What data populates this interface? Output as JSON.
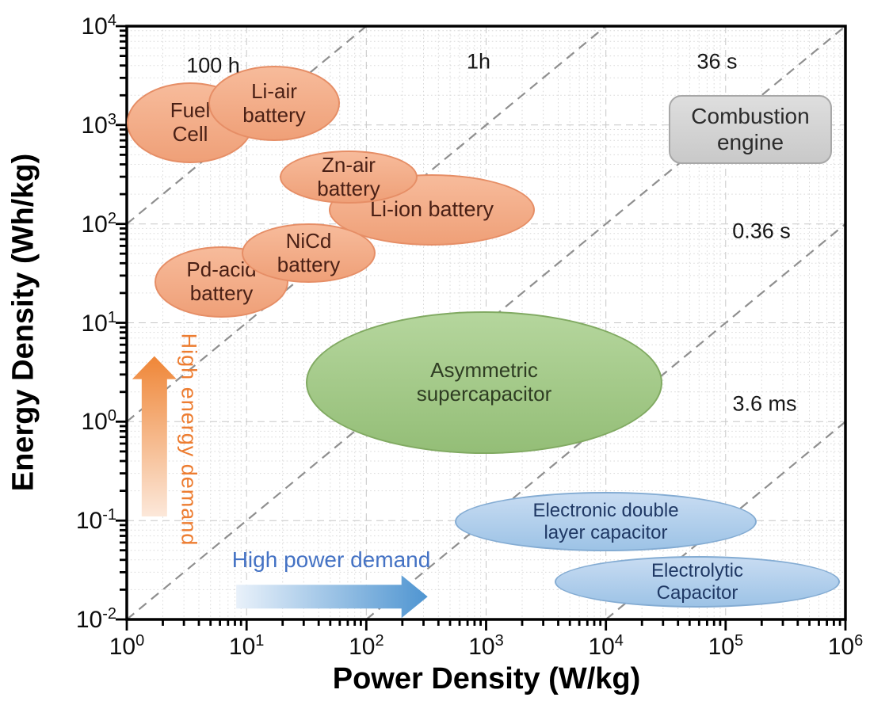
{
  "chart_data": {
    "type": "scatter",
    "style": "ragone-plot-region-map",
    "title": "",
    "xlabel": "Power Density (W/kg)",
    "ylabel": "Energy Density (Wh/kg)",
    "x_scale": "log",
    "y_scale": "log",
    "xlim": [
      1,
      1000000
    ],
    "ylim": [
      0.01,
      10000
    ],
    "grid": "log major and minor gridlines, light gray, dotted minors",
    "legend": "none",
    "tick_base": "10",
    "x_tick_exponents": [
      "0",
      "1",
      "2",
      "3",
      "4",
      "5",
      "6"
    ],
    "y_tick_exponents": [
      "4",
      "3",
      "2",
      "1",
      "0",
      "-1",
      "-2"
    ],
    "regions": [
      {
        "id": "fuel-cell",
        "shape": "ellipse",
        "label_lines": [
          "Fuel",
          "Cell"
        ],
        "power_W_per_kg": 3.4,
        "energy_Wh_per_kg": 1050,
        "power_halfwidth_decades": 0.53,
        "energy_halfwidth_decades": 0.41,
        "fill_top": "#f7bb9b",
        "fill_bottom": "#efa078",
        "stroke": "#e68e66",
        "text_color": "#4a2015"
      },
      {
        "id": "li-air-battery",
        "shape": "ellipse",
        "label_lines": [
          "Li-air",
          "battery"
        ],
        "power_W_per_kg": 17,
        "energy_Wh_per_kg": 1670,
        "power_halfwidth_decades": 0.55,
        "energy_halfwidth_decades": 0.38,
        "fill_top": "#f7bb9b",
        "fill_bottom": "#efa078",
        "stroke": "#e68e66",
        "text_color": "#4a2015"
      },
      {
        "id": "li-ion-battery",
        "shape": "ellipse",
        "label_lines": [
          "Li-ion battery"
        ],
        "power_W_per_kg": 350,
        "energy_Wh_per_kg": 139,
        "power_halfwidth_decades": 0.86,
        "energy_halfwidth_decades": 0.36,
        "fill_top": "#f7bb9b",
        "fill_bottom": "#efa078",
        "stroke": "#e68e66",
        "text_color": "#4a2015"
      },
      {
        "id": "zn-air-battery",
        "shape": "ellipse",
        "label_lines": [
          "Zn-air",
          "battery"
        ],
        "power_W_per_kg": 71,
        "energy_Wh_per_kg": 295,
        "power_halfwidth_decades": 0.575,
        "energy_halfwidth_decades": 0.27,
        "fill_top": "#f7bb9b",
        "fill_bottom": "#efa078",
        "stroke": "#e68e66",
        "text_color": "#4a2015"
      },
      {
        "id": "pd-acid-battery",
        "shape": "ellipse",
        "label_lines": [
          "Pd-acid",
          "battery"
        ],
        "power_W_per_kg": 6.2,
        "energy_Wh_per_kg": 26,
        "power_halfwidth_decades": 0.56,
        "energy_halfwidth_decades": 0.36,
        "fill_top": "#f7bb9b",
        "fill_bottom": "#efa078",
        "stroke": "#e68e66",
        "text_color": "#4a2015"
      },
      {
        "id": "nicd-battery",
        "shape": "ellipse",
        "label_lines": [
          "NiCd",
          "battery"
        ],
        "power_W_per_kg": 33,
        "energy_Wh_per_kg": 51,
        "power_halfwidth_decades": 0.56,
        "energy_halfwidth_decades": 0.3,
        "fill_top": "#f7bb9b",
        "fill_bottom": "#efa078",
        "stroke": "#e68e66",
        "text_color": "#4a2015"
      },
      {
        "id": "asymmetric-supercapacitor",
        "shape": "ellipse",
        "label_lines": [
          "Asymmetric",
          "supercapacitor"
        ],
        "power_W_per_kg": 960,
        "energy_Wh_per_kg": 2.5,
        "power_halfwidth_decades": 1.49,
        "energy_halfwidth_decades": 0.72,
        "fill_top": "#b5d69d",
        "fill_bottom": "#94be77",
        "stroke": "#81aa62",
        "text_color": "#2f3d23"
      },
      {
        "id": "electronic-double-layer-capacitor",
        "shape": "ellipse",
        "label_lines": [
          "Electronic double",
          "layer capacitor"
        ],
        "power_W_per_kg": 10000,
        "energy_Wh_per_kg": 0.098,
        "power_halfwidth_decades": 1.26,
        "energy_halfwidth_decades": 0.3,
        "fill_top": "#c8dcf2",
        "fill_bottom": "#9dc3e6",
        "stroke": "#84acd3",
        "text_color": "#1f3864"
      },
      {
        "id": "electrolytic-capacitor",
        "shape": "ellipse",
        "label_lines": [
          "Electrolytic",
          "Capacitor"
        ],
        "power_W_per_kg": 58000,
        "energy_Wh_per_kg": 0.024,
        "power_halfwidth_decades": 1.19,
        "energy_halfwidth_decades": 0.26,
        "fill_top": "#c8dcf2",
        "fill_bottom": "#9dc3e6",
        "stroke": "#84acd3",
        "text_color": "#1f3864"
      },
      {
        "id": "combustion-engine",
        "shape": "rounded-rect",
        "label_lines": [
          "Combustion",
          "engine"
        ],
        "power_W_per_kg": 160000,
        "energy_Wh_per_kg": 900,
        "power_halfwidth_decades": 0.68,
        "energy_halfwidth_decades": 0.35,
        "fill_top": "#dedede",
        "fill_bottom": "#c9c9c9",
        "stroke": "#a8a8a8",
        "text_color": "#2b2b2b"
      }
    ],
    "isotime_lines": [
      {
        "label": "100 h",
        "t_hours": 100,
        "label_power": 5.3,
        "label_energy": 4000
      },
      {
        "label": "1h",
        "t_hours": 1,
        "label_power": 870,
        "label_energy": 4400
      },
      {
        "label": "36 s",
        "t_hours": 0.01,
        "label_power": 85000,
        "label_energy": 4400
      },
      {
        "label": "0.36 s",
        "t_hours": 0.0001,
        "label_power": 200000,
        "label_energy": 84
      },
      {
        "label": "3.6 ms",
        "t_hours": 1e-06,
        "label_power": 210000,
        "label_energy": 1.5
      }
    ],
    "annotations": {
      "arrows": [
        {
          "id": "high-energy-arrow",
          "direction": "up",
          "from_power": 1.7,
          "from_energy": 0.11,
          "to_energy": 4.6,
          "color_faint": "#fce8da",
          "color_solid": "#ef8637"
        },
        {
          "id": "high-power-arrow",
          "direction": "right",
          "from_energy": 0.017,
          "from_power": 8.2,
          "to_power": 325,
          "color_faint": "#e9f1fa",
          "color_solid": "#4f95d1"
        }
      ],
      "texts": [
        {
          "id": "high-energy-demand",
          "text": "High energy demand",
          "orientation": "vertical",
          "color": "#ed7d31",
          "power": 3.3,
          "energy": 0.66
        },
        {
          "id": "high-power-demand",
          "text": "High power demand",
          "orientation": "horizontal",
          "color": "#4472c4",
          "power": 51,
          "energy": 0.04
        }
      ]
    }
  }
}
